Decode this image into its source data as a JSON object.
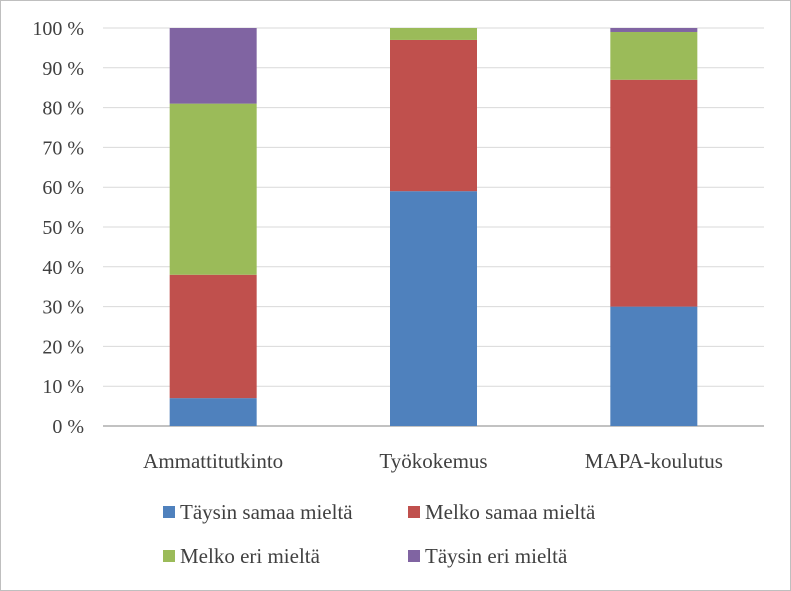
{
  "chart_data": {
    "type": "bar",
    "stacked": true,
    "categories": [
      "Ammattitutkinto",
      "Työkokemus",
      "MAPA-koulutus"
    ],
    "series": [
      {
        "name": "Täysin samaa mieltä",
        "color": "#4f81bd",
        "values": [
          7,
          59,
          30
        ]
      },
      {
        "name": "Melko samaa mieltä",
        "color": "#c0504d",
        "values": [
          31,
          38,
          57
        ]
      },
      {
        "name": "Melko eri mieltä",
        "color": "#9bbb59",
        "values": [
          43,
          3,
          12
        ]
      },
      {
        "name": "Täysin eri mieltä",
        "color": "#8064a2",
        "values": [
          19,
          0,
          1
        ]
      }
    ],
    "yticks": [
      "0 %",
      "10 %",
      "20 %",
      "30 %",
      "40 %",
      "50 %",
      "60 %",
      "70 %",
      "80 %",
      "90 %",
      "100 %"
    ],
    "ylim": [
      0,
      100
    ],
    "grid": true,
    "legend": "bottom",
    "title": "",
    "xlabel": "",
    "ylabel": ""
  }
}
